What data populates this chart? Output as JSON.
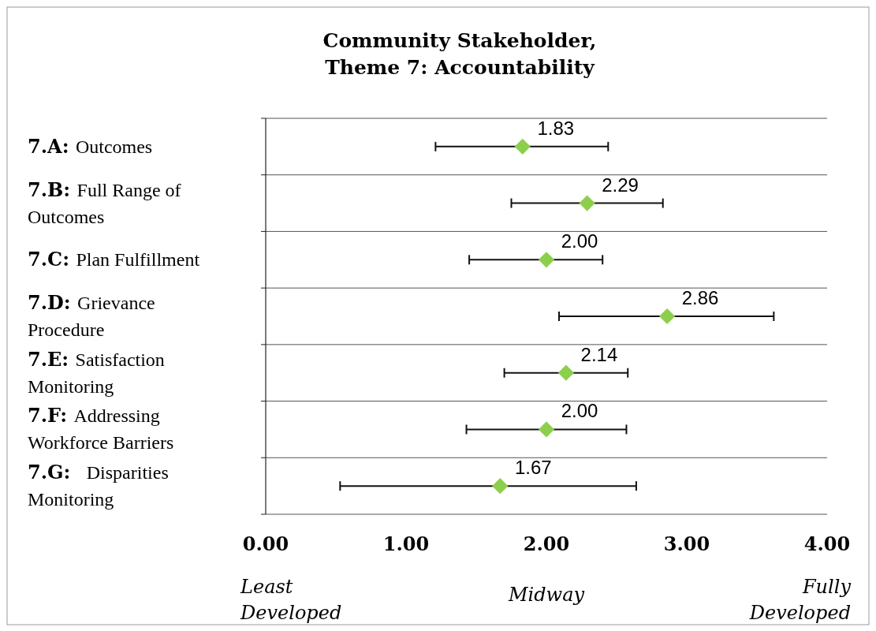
{
  "chart_data": {
    "type": "scatter",
    "orientation": "horizontal",
    "title": "Community Stakeholder, Theme 7: Accountability",
    "categories": [
      "7.A: Outcomes",
      "7.B: Full Range of Outcomes",
      "7.C: Plan Fulfillment",
      "7.D: Grievance Procedure",
      "7.E: Satisfaction Monitoring",
      "7.F: Addressing Workforce Barriers",
      "7.G:  Disparities Monitoring"
    ],
    "values": [
      1.83,
      2.29,
      2.0,
      2.86,
      2.14,
      2.0,
      1.67
    ],
    "errors": [
      [
        1.21,
        2.44
      ],
      [
        1.75,
        2.83
      ],
      [
        1.45,
        2.4
      ],
      [
        2.09,
        3.62
      ],
      [
        1.7,
        2.58
      ],
      [
        1.43,
        2.57
      ],
      [
        0.53,
        2.64
      ]
    ],
    "value_labels": [
      "1.83",
      "2.29",
      "2.00",
      "2.86",
      "2.14",
      "2.00",
      "1.67"
    ],
    "color": "#8ccf4d",
    "marker": "diamond",
    "grid": "y",
    "xlim": [
      0,
      4
    ],
    "xticks": [
      {
        "value": 0,
        "label": "0.00"
      },
      {
        "value": 1,
        "label": "1.00"
      },
      {
        "value": 2,
        "label": "2.00"
      },
      {
        "value": 3,
        "label": "3.00"
      },
      {
        "value": 4,
        "label": "4.00"
      }
    ],
    "annotations": [
      "Least Developed",
      "Midway",
      "Fully Developed"
    ]
  }
}
